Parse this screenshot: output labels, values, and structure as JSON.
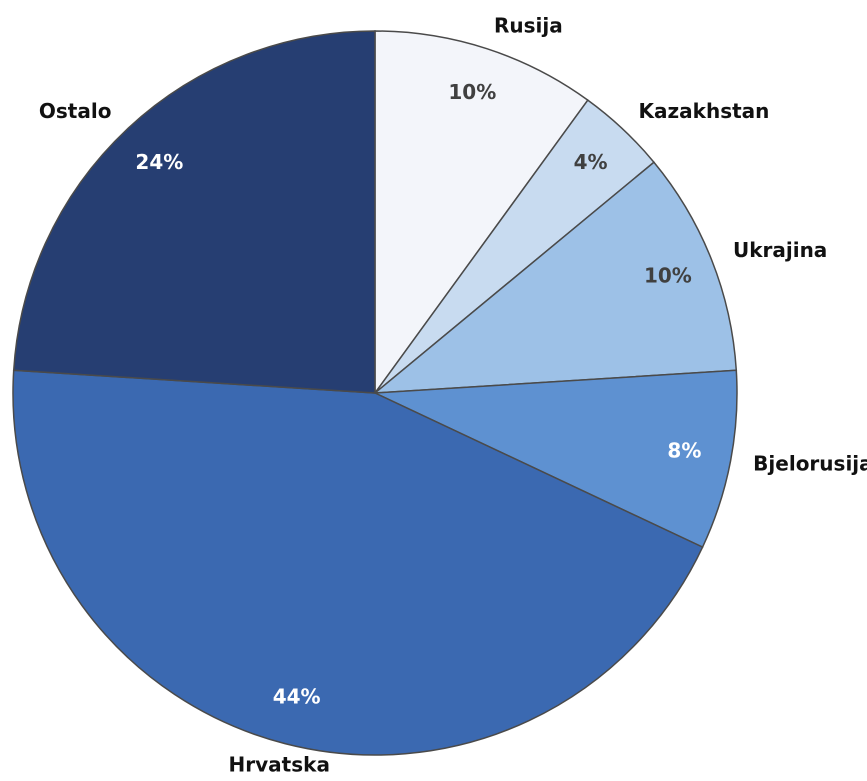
{
  "chart_data": {
    "type": "pie",
    "categories": [
      "Rusija",
      "Kazakhstan",
      "Ukrajina",
      "Bjelorusija",
      "Hrvatska",
      "Ostalo"
    ],
    "values": [
      10,
      4,
      10,
      8,
      44,
      24
    ],
    "value_labels": [
      "10%",
      "4%",
      "10%",
      "8%",
      "44%",
      "24%"
    ],
    "colors": [
      "#f3f5fa",
      "#c8dbf0",
      "#9dc1e7",
      "#5e91d1",
      "#3b69b1",
      "#263e72"
    ]
  }
}
